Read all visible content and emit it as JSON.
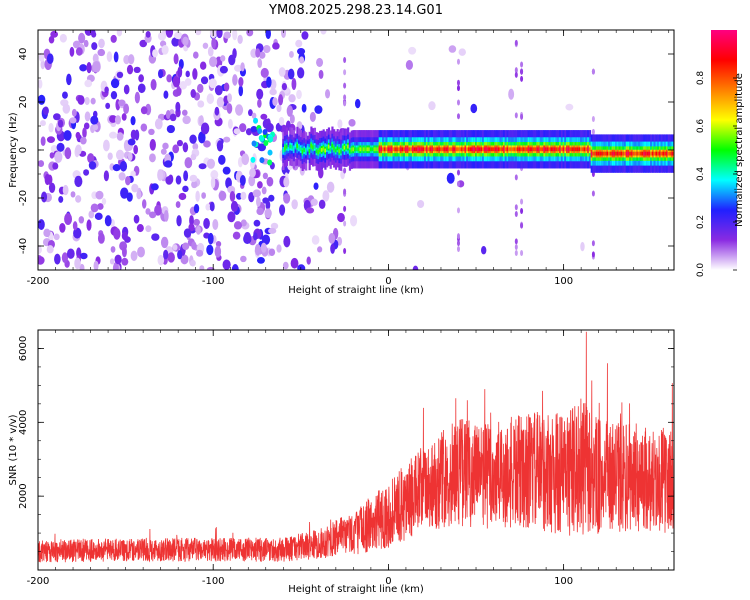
{
  "title": "YM08.2025.298.23.14.G01",
  "chart_data": [
    {
      "type": "heatmap",
      "title": "YM08.2025.298.23.14.G01",
      "xlabel": "Height of straight line (km)",
      "ylabel": "Frequency (Hz)",
      "xlim": [
        -200,
        163
      ],
      "ylim": [
        -50,
        50
      ],
      "xticks": [
        -200,
        -100,
        0,
        100
      ],
      "yticks": [
        -40,
        -20,
        0,
        20,
        40
      ],
      "colorbar": {
        "label": "Normalized spectral amplitude",
        "range": [
          0,
          1
        ],
        "ticks": [
          "0.0",
          "0.2",
          "0.4",
          "0.6",
          "0.8"
        ],
        "colormap": [
          "#ffffff",
          "#8a2be2",
          "#2020ff",
          "#00ffff",
          "#00ff00",
          "#ffff00",
          "#ff8000",
          "#ff0000",
          "#ff0080"
        ]
      },
      "features": {
        "noise_region_x": [
          -200,
          -25
        ],
        "noise_level": 0.15,
        "signal_band_x": [
          -60,
          163
        ],
        "signal_center_hz": 0,
        "peak_amplitude": 0.95
      }
    },
    {
      "type": "line",
      "xlabel": "Height of straight line (km)",
      "ylabel": "SNR (10 * v/v)",
      "xlim": [
        -200,
        163
      ],
      "ylim": [
        0,
        6500
      ],
      "xticks": [
        -200,
        -100,
        0,
        100
      ],
      "yticks": [
        2000,
        4000,
        6000
      ],
      "color": "#ee3333",
      "envelope": {
        "x": [
          -200,
          -150,
          -100,
          -60,
          -40,
          -20,
          0,
          20,
          40,
          60,
          80,
          100,
          110,
          120,
          140,
          163
        ],
        "median": [
          500,
          550,
          550,
          550,
          700,
          1000,
          1500,
          2200,
          2700,
          2500,
          2700,
          2600,
          2800,
          2500,
          2500,
          2400
        ],
        "spread": [
          300,
          320,
          320,
          330,
          400,
          600,
          900,
          1200,
          1500,
          1500,
          1600,
          1700,
          1900,
          1600,
          1500,
          1400
        ]
      },
      "peaks": [
        {
          "x": 113,
          "y": 6450
        },
        {
          "x": 125,
          "y": 5600
        },
        {
          "x": 55,
          "y": 4900
        },
        {
          "x": 88,
          "y": 4850
        },
        {
          "x": 45,
          "y": 4600
        }
      ]
    }
  ]
}
